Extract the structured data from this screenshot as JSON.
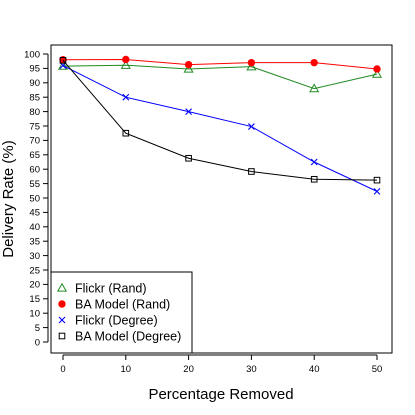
{
  "chart_data": {
    "type": "line",
    "title": "",
    "xlabel": "Percentage Removed",
    "ylabel": "Delivery Rate (%)",
    "x": [
      0,
      10,
      20,
      30,
      40,
      50
    ],
    "xticks": [
      "0",
      "10",
      "20",
      "30",
      "40",
      "50"
    ],
    "yticks": [
      "0",
      "5",
      "10",
      "15",
      "20",
      "25",
      "30",
      "35",
      "40",
      "45",
      "50",
      "55",
      "60",
      "65",
      "70",
      "75",
      "80",
      "85",
      "90",
      "95",
      "100"
    ],
    "xlim": [
      0,
      50
    ],
    "ylim": [
      0,
      100
    ],
    "grid": false,
    "legend_position": "bottom-left",
    "series": [
      {
        "name": "Flickr (Rand)",
        "color": "#228B22",
        "marker": "triangle",
        "values": [
          95.8,
          96.1,
          94.8,
          95.6,
          88.0,
          93.0
        ]
      },
      {
        "name": "BA Model (Rand)",
        "color": "#FF0000",
        "marker": "filled-circle",
        "values": [
          98.0,
          98.1,
          96.3,
          97.0,
          97.0,
          94.8
        ]
      },
      {
        "name": "Flickr (Degree)",
        "color": "#0000FF",
        "marker": "x-cross",
        "values": [
          96.0,
          85.0,
          80.0,
          74.8,
          62.5,
          52.3
        ]
      },
      {
        "name": "BA Model (Degree)",
        "color": "#000000",
        "marker": "open-square",
        "values": [
          97.8,
          72.5,
          63.8,
          59.2,
          56.5,
          56.2
        ]
      }
    ]
  }
}
